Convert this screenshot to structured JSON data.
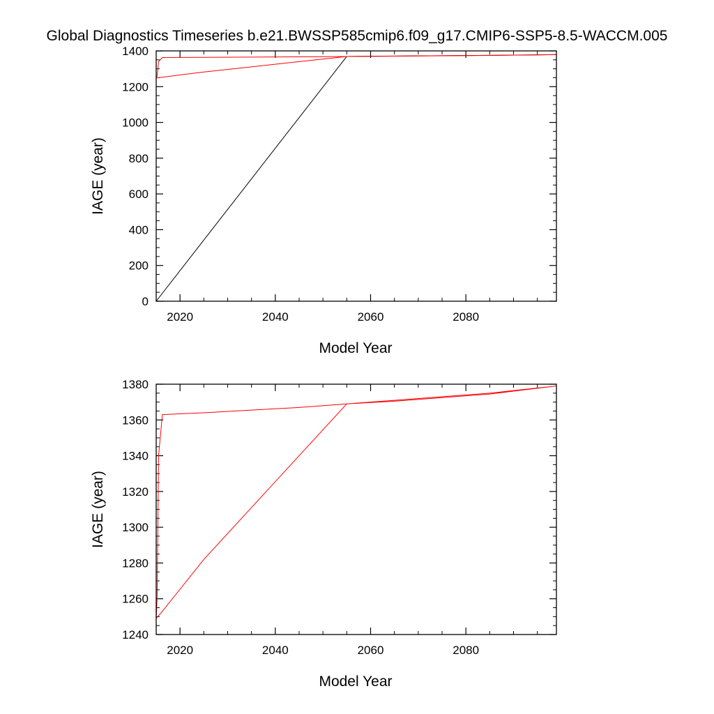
{
  "title": "Global Diagnostics Timeseries b.e21.BWSSP585cmip6.f09_g17.CMIP6-SSP5-8.5-WACCM.005",
  "chart_data": [
    {
      "type": "line",
      "xlabel": "Model Year",
      "ylabel": "IAGE (year)",
      "xlim": [
        2015,
        2099
      ],
      "ylim": [
        0,
        1400
      ],
      "xticks": [
        2020,
        2040,
        2060,
        2080
      ],
      "yticks": [
        0,
        200,
        400,
        600,
        800,
        1000,
        1200,
        1400
      ],
      "grid": false,
      "series": [
        {
          "color": "#000000",
          "x": [
            2015,
            2055,
            2070,
            2085,
            2099
          ],
          "y": [
            0,
            1369,
            1372,
            1375,
            1379
          ]
        },
        {
          "color": "#ff0000",
          "x": [
            2015,
            2015.2,
            2015.5,
            2016.3,
            2025,
            2035,
            2045,
            2055,
            2065,
            2075,
            2085,
            2099,
            2085,
            2075,
            2065,
            2055,
            2045,
            2035,
            2025,
            2016,
            2015
          ],
          "y": [
            1249,
            1260,
            1340,
            1363,
            1364,
            1365.5,
            1367,
            1369,
            1371,
            1373,
            1375,
            1379,
            1374.5,
            1372.5,
            1370.5,
            1369,
            1340,
            1311,
            1282,
            1252,
            1249
          ]
        }
      ]
    },
    {
      "type": "line",
      "xlabel": "Model Year",
      "ylabel": "IAGE (year)",
      "xlim": [
        2015,
        2099
      ],
      "ylim": [
        1240,
        1380
      ],
      "xticks": [
        2020,
        2040,
        2060,
        2080
      ],
      "yticks": [
        1240,
        1260,
        1280,
        1300,
        1320,
        1340,
        1360,
        1380
      ],
      "grid": false,
      "series": [
        {
          "color": "#ff0000",
          "x": [
            2015,
            2015.2,
            2015.5,
            2016.3,
            2025,
            2035,
            2045,
            2055,
            2065,
            2075,
            2085,
            2099,
            2085,
            2075,
            2065,
            2055,
            2045,
            2035,
            2025,
            2016,
            2015
          ],
          "y": [
            1249,
            1260,
            1340,
            1363,
            1364,
            1365.5,
            1367,
            1369,
            1371,
            1373,
            1375,
            1379,
            1374.5,
            1372.5,
            1370.5,
            1369,
            1340,
            1311,
            1282,
            1252,
            1249
          ]
        }
      ]
    }
  ]
}
